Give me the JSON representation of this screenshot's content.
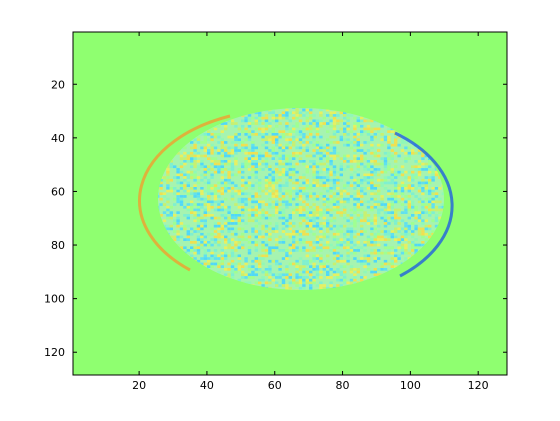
{
  "chart_data": {
    "type": "image",
    "xlim": [
      0.5,
      128.5
    ],
    "ylim": [
      0.5,
      128.5
    ],
    "y_reversed": true,
    "xticks": [
      20,
      40,
      60,
      80,
      100,
      120
    ],
    "yticks": [
      20,
      40,
      60,
      80,
      100,
      120
    ],
    "background_color": "#8fff70"
  }
}
